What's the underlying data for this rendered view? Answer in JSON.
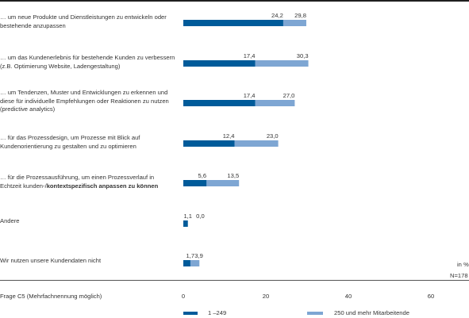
{
  "chart_data": {
    "type": "bar",
    "orientation": "horizontal",
    "stacking": "overlay",
    "categories": [
      {
        "text": "… um neue Produkte und Dienstleistungen zu entwickeln oder bestehende anzupassen",
        "bold": ""
      },
      {
        "text": "… um das Kundenerlebnis für bestehende Kunden zu verbessern (z.B. Optimierung Website, Ladengestaltung)",
        "bold": ""
      },
      {
        "text": "… um Tendenzen, Muster und Entwicklungen zu erkennen und diese für individuelle Empfehlungen oder Reaktionen zu nutzen (predictive analytics)",
        "bold": ""
      },
      {
        "text": "… für das Prozessdesign, um Prozesse mit Blick auf Kundenorientierung zu gestalten und zu optimieren",
        "bold": ""
      },
      {
        "text": "… für die Prozessausführung, um einen Prozessverlauf in Echtzeit kunden-/",
        "bold": "kontextspezifisch anpassen zu können"
      },
      {
        "text": "Andere",
        "bold": ""
      },
      {
        "text": "Wir nutzen unsere Kundendaten nicht",
        "bold": ""
      }
    ],
    "series": [
      {
        "name": "1 –249",
        "color": "#005b9a",
        "values": [
          24.2,
          17.4,
          17.4,
          12.4,
          5.6,
          1.1,
          1.7
        ],
        "labels": [
          "24,2",
          "17,4",
          "17,4",
          "12,4",
          "5,6",
          "1,1",
          "1,7"
        ]
      },
      {
        "name": "250 und mehr Mitarbeitende",
        "color": "#7ea6d3",
        "values": [
          29.8,
          30.3,
          27.0,
          23.0,
          13.5,
          0.0,
          3.9
        ],
        "labels": [
          "29,8",
          "30,3",
          "27,0",
          "23,0",
          "13,5",
          "0,0",
          "3,9"
        ]
      }
    ],
    "x_ticks": [
      "0",
      "20",
      "40",
      "60"
    ],
    "xlim": [
      0,
      60
    ],
    "unit_label": "in %",
    "n_label": "N=178",
    "footnote": "Frage C5 (Mehrfachnennung möglich)",
    "legend_position": "bottom",
    "grid": false
  }
}
